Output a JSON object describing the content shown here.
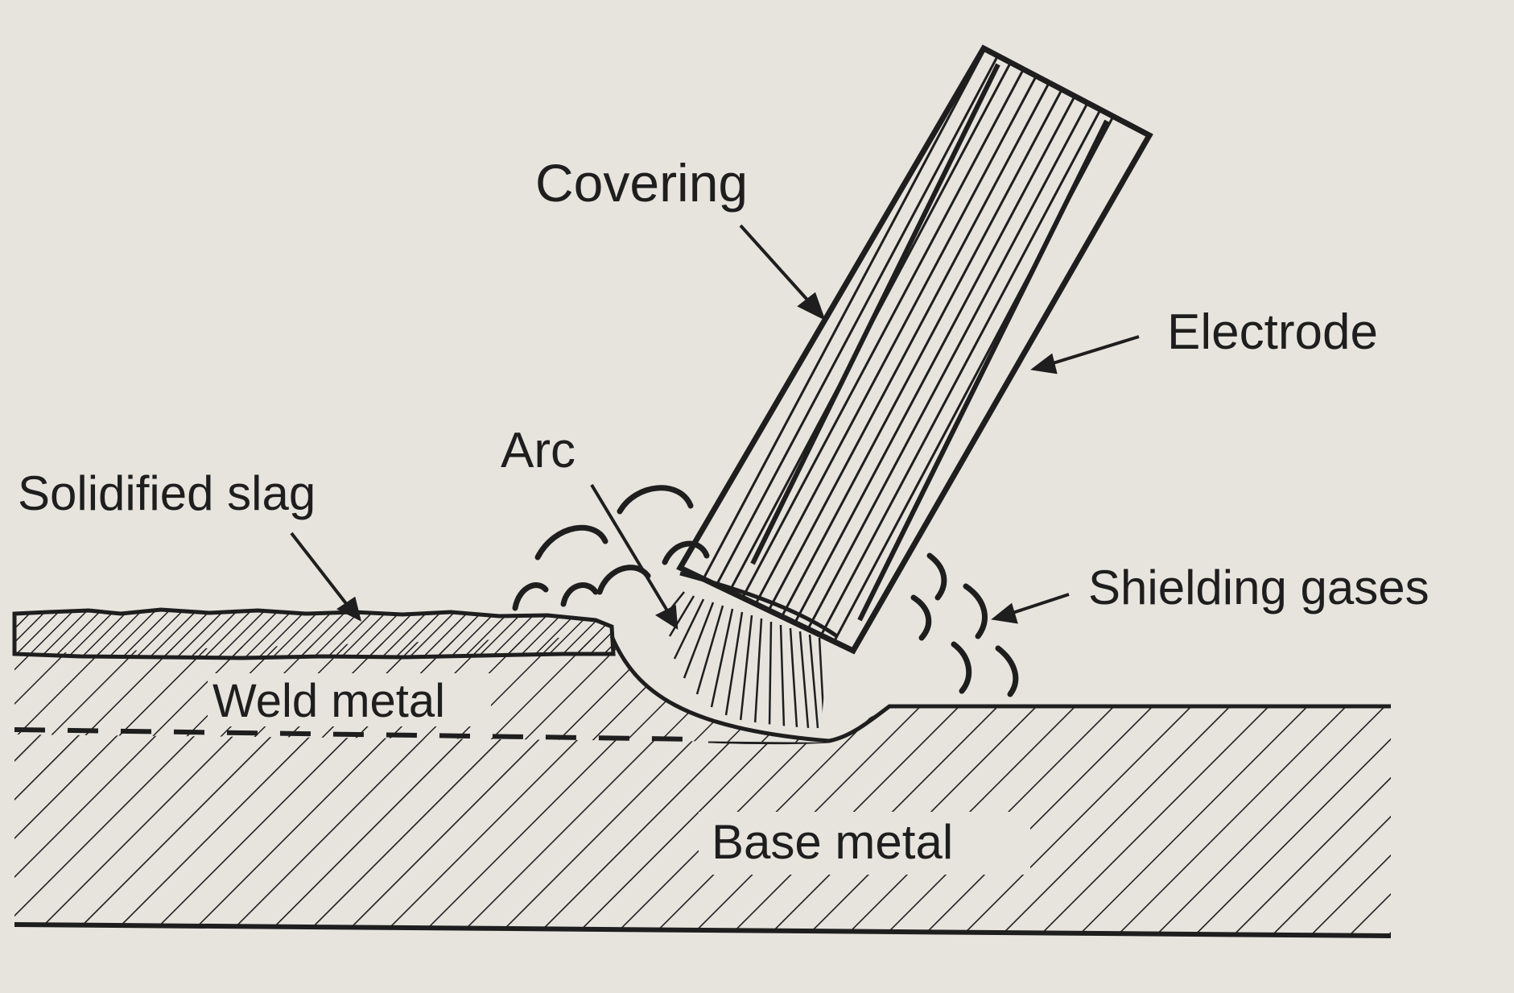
{
  "diagram": {
    "labels": {
      "covering": "Covering",
      "electrode": "Electrode",
      "arc": "Arc",
      "solidified_slag": "Solidified slag",
      "shielding_gases": "Shielding gases",
      "weld_metal": "Weld metal",
      "base_metal": "Base metal"
    }
  },
  "colors": {
    "paper": "#e7e4de",
    "ink": "#1e1e1e"
  }
}
